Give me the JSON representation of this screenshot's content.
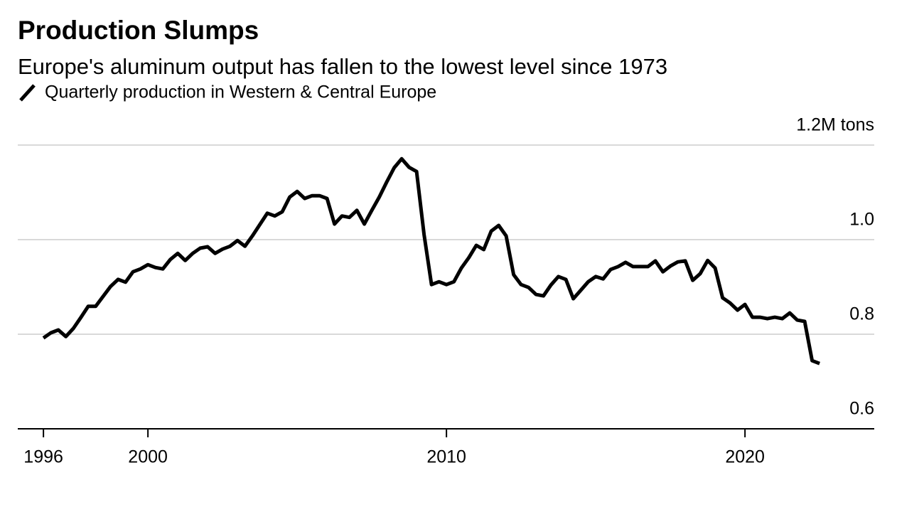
{
  "chart_data": {
    "type": "line",
    "title": "Production Slumps",
    "subtitle": "Europe's aluminum output has fallen to the lowest level since 1973",
    "x": [
      1996.5,
      1996.75,
      1997,
      1997.25,
      1997.5,
      1997.75,
      1998,
      1998.25,
      1998.5,
      1998.75,
      1999,
      1999.25,
      1999.5,
      1999.75,
      2000,
      2000.25,
      2000.5,
      2000.75,
      2001,
      2001.25,
      2001.5,
      2001.75,
      2002,
      2002.25,
      2002.5,
      2002.75,
      2003,
      2003.25,
      2003.5,
      2003.75,
      2004,
      2004.25,
      2004.5,
      2004.75,
      2005,
      2005.25,
      2005.5,
      2005.75,
      2006,
      2006.25,
      2006.5,
      2006.75,
      2007,
      2007.25,
      2007.5,
      2007.75,
      2008,
      2008.25,
      2008.5,
      2008.75,
      2009,
      2009.25,
      2009.5,
      2009.75,
      2010,
      2010.25,
      2010.5,
      2010.75,
      2011,
      2011.25,
      2011.5,
      2011.75,
      2012,
      2012.25,
      2012.5,
      2012.75,
      2013,
      2013.25,
      2013.5,
      2013.75,
      2014,
      2014.25,
      2014.5,
      2014.75,
      2015,
      2015.25,
      2015.5,
      2015.75,
      2016,
      2016.25,
      2016.5,
      2016.75,
      2017,
      2017.25,
      2017.5,
      2017.75,
      2018,
      2018.25,
      2018.5,
      2018.75,
      2019,
      2019.25,
      2019.5,
      2019.75,
      2020,
      2020.25,
      2020.5,
      2020.75,
      2021,
      2021.25,
      2021.5,
      2021.75,
      2022,
      2022.25,
      2022.5
    ],
    "series": [
      {
        "name": "Quarterly production in Western & Central Europe",
        "color": "#000000",
        "values": [
          0.792,
          0.803,
          0.809,
          0.795,
          0.812,
          0.835,
          0.859,
          0.859,
          0.88,
          0.901,
          0.916,
          0.91,
          0.932,
          0.938,
          0.947,
          0.941,
          0.938,
          0.958,
          0.971,
          0.956,
          0.971,
          0.982,
          0.985,
          0.971,
          0.98,
          0.986,
          0.998,
          0.986,
          1.008,
          1.032,
          1.056,
          1.05,
          1.059,
          1.09,
          1.102,
          1.087,
          1.093,
          1.093,
          1.087,
          1.033,
          1.05,
          1.047,
          1.062,
          1.033,
          1.062,
          1.09,
          1.122,
          1.152,
          1.171,
          1.153,
          1.144,
          1.011,
          0.905,
          0.911,
          0.905,
          0.911,
          0.94,
          0.962,
          0.988,
          0.979,
          1.018,
          1.03,
          1.008,
          0.926,
          0.905,
          0.899,
          0.884,
          0.881,
          0.904,
          0.922,
          0.916,
          0.875,
          0.893,
          0.911,
          0.922,
          0.917,
          0.937,
          0.943,
          0.952,
          0.943,
          0.943,
          0.943,
          0.955,
          0.932,
          0.944,
          0.953,
          0.955,
          0.914,
          0.928,
          0.956,
          0.94,
          0.877,
          0.866,
          0.851,
          0.863,
          0.836,
          0.836,
          0.833,
          0.836,
          0.833,
          0.845,
          0.83,
          0.827,
          0.744,
          0.738
        ]
      }
    ],
    "xlim": [
      1995.64,
      2024.33
    ],
    "xticks": [
      {
        "value": 1996.5,
        "label": "1996"
      },
      2000,
      2010,
      2020
    ],
    "ylim": [
      0.6,
      1.2
    ],
    "yticks": [
      0.6,
      0.8,
      {
        "value": 1,
        "label": "1.0"
      },
      {
        "value": 1.2,
        "label": "1.2M tons"
      }
    ],
    "grid": true
  }
}
